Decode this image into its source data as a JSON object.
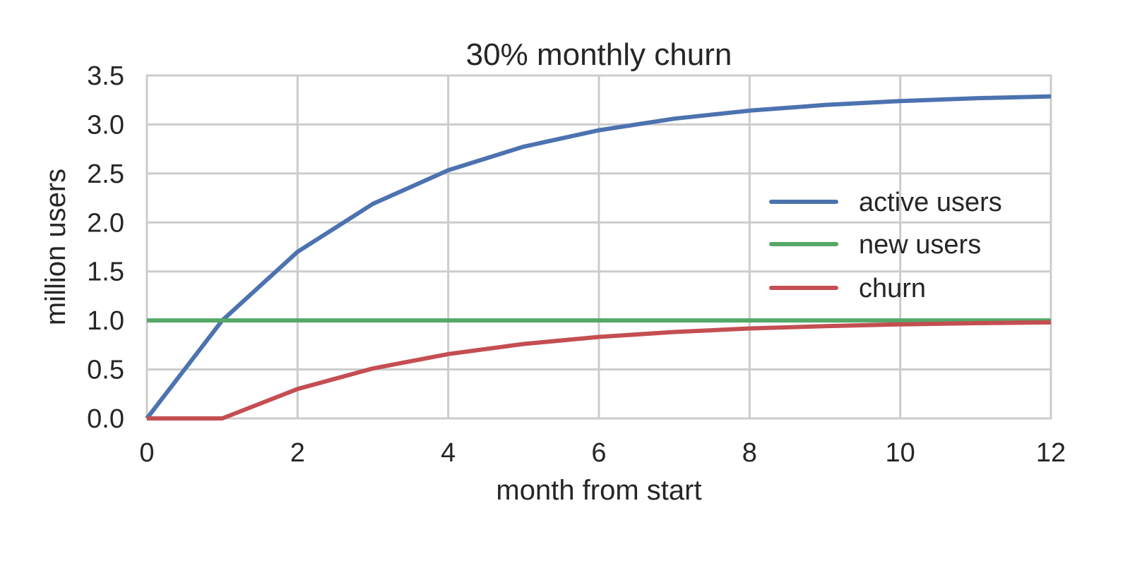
{
  "chart_data": {
    "type": "line",
    "title": "30% monthly churn",
    "xlabel": "month from start",
    "ylabel": "million users",
    "xlim": [
      0,
      12
    ],
    "ylim": [
      0,
      3.5
    ],
    "xticks": [
      0,
      2,
      4,
      6,
      8,
      10,
      12
    ],
    "xtick_labels": [
      "0",
      "2",
      "4",
      "6",
      "8",
      "10",
      "12"
    ],
    "yticks": [
      0,
      0.5,
      1,
      1.5,
      2,
      2.5,
      3,
      3.5
    ],
    "ytick_labels": [
      "0.0",
      "0.5",
      "1.0",
      "1.5",
      "2.0",
      "2.5",
      "3.0",
      "3.5"
    ],
    "grid": true,
    "legend_position": "center-right",
    "x": [
      0,
      1,
      2,
      3,
      4,
      5,
      6,
      7,
      8,
      9,
      10,
      11,
      12
    ],
    "series": [
      {
        "name": "active users",
        "color": "#4c72b0",
        "values": [
          0.0,
          1.0,
          1.7,
          2.19,
          2.533,
          2.773,
          2.941,
          3.059,
          3.141,
          3.199,
          3.239,
          3.268,
          3.287
        ]
      },
      {
        "name": "new users",
        "color": "#55a868",
        "values": [
          1.0,
          1.0,
          1.0,
          1.0,
          1.0,
          1.0,
          1.0,
          1.0,
          1.0,
          1.0,
          1.0,
          1.0,
          1.0
        ]
      },
      {
        "name": "churn",
        "color": "#c44e52",
        "values": [
          0.0,
          0.0,
          0.3,
          0.51,
          0.657,
          0.76,
          0.832,
          0.882,
          0.918,
          0.942,
          0.96,
          0.972,
          0.98
        ]
      }
    ]
  }
}
